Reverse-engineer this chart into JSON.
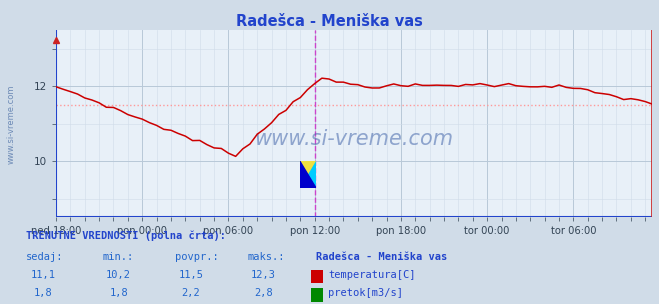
{
  "title": "Radešca - Meniška vas",
  "title_color": "#2244cc",
  "fig_bg_color": "#d0dce8",
  "plot_bg_color": "#e8f0f8",
  "grid_major_color": "#b8c8d8",
  "grid_minor_color": "#d0dce8",
  "x_tick_labels": [
    "ned 18:00",
    "pon 00:00",
    "pon 06:00",
    "pon 12:00",
    "pon 18:00",
    "tor 00:00",
    "tor 06:00"
  ],
  "x_tick_positions": [
    0,
    12,
    24,
    36,
    48,
    60,
    72
  ],
  "n_points": 84,
  "ylim": [
    8.5,
    13.5
  ],
  "yticks": [
    10,
    12
  ],
  "temp_color": "#cc0000",
  "temp_avg_color": "#ff9999",
  "flow_color": "#008800",
  "flow_avg_color": "#66cc66",
  "blue_axis_color": "#2244cc",
  "magenta_line_color": "#cc44cc",
  "red_right_line_color": "#cc2222",
  "watermark_color": "#4466aa",
  "watermark_alpha": 0.55,
  "footer_title_color": "#2244cc",
  "footer_label_color": "#2266cc",
  "footer_value_color": "#2266cc",
  "temp_min": 10.2,
  "temp_max": 12.3,
  "temp_avg": 11.5,
  "temp_cur": 11.1,
  "flow_min": 1.8,
  "flow_max": 2.8,
  "flow_avg": 2.2,
  "flow_cur": 1.8,
  "side_label": "www.si-vreme.com",
  "watermark_text": "www.si-vreme.com",
  "footer_line1": "TRENUTNE VREDNOSTI (polna črta):",
  "col_headers": [
    "sedaj:",
    "min.:",
    "povpr.:",
    "maks.:"
  ],
  "station_name": "Radešca - Meniška vas",
  "legend_temp": "temperatura[C]",
  "legend_flow": "pretok[m3/s]"
}
